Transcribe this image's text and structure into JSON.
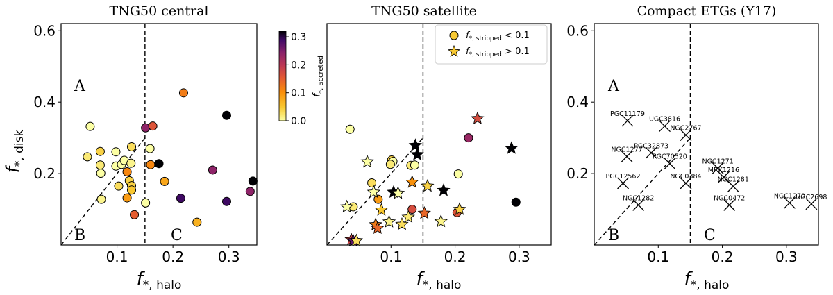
{
  "chart_data": [
    {
      "type": "scatter",
      "title": "TNG50 central",
      "xlabel": "f*, halo",
      "ylabel": "f*, disk",
      "xlim": [
        0,
        0.35
      ],
      "ylim": [
        0,
        0.62
      ],
      "xticks": [
        "0.1",
        "0.2",
        "0.3"
      ],
      "yticks": [
        "0.2",
        "0.4",
        "0.6"
      ],
      "halo_threshold": 0.15,
      "region_labels": [
        "A",
        "B",
        "C"
      ],
      "colorbar": {
        "label": "f*, accreted",
        "ticks": [
          "0.0",
          "0.1",
          "0.2",
          "0.3"
        ],
        "range": [
          0,
          0.32
        ]
      },
      "series": [
        {
          "marker": "circle",
          "points": [
            {
              "x": 0.047,
              "y": 0.247,
              "c": 0.02
            },
            {
              "x": 0.052,
              "y": 0.332,
              "c": 0.0
            },
            {
              "x": 0.07,
              "y": 0.262,
              "c": 0.04
            },
            {
              "x": 0.07,
              "y": 0.224,
              "c": 0.02
            },
            {
              "x": 0.071,
              "y": 0.201,
              "c": 0.0
            },
            {
              "x": 0.072,
              "y": 0.128,
              "c": 0.01
            },
            {
              "x": 0.098,
              "y": 0.261,
              "c": 0.0
            },
            {
              "x": 0.098,
              "y": 0.221,
              "c": 0.0
            },
            {
              "x": 0.103,
              "y": 0.165,
              "c": 0.03
            },
            {
              "x": 0.108,
              "y": 0.226,
              "c": 0.0
            },
            {
              "x": 0.113,
              "y": 0.237,
              "c": 0.0
            },
            {
              "x": 0.118,
              "y": 0.205,
              "c": 0.11
            },
            {
              "x": 0.118,
              "y": 0.132,
              "c": 0.09
            },
            {
              "x": 0.122,
              "y": 0.18,
              "c": 0.04
            },
            {
              "x": 0.126,
              "y": 0.166,
              "c": 0.04
            },
            {
              "x": 0.126,
              "y": 0.154,
              "c": 0.05
            },
            {
              "x": 0.126,
              "y": 0.275,
              "c": 0.03
            },
            {
              "x": 0.125,
              "y": 0.229,
              "c": 0.01
            },
            {
              "x": 0.131,
              "y": 0.085,
              "c": 0.15
            },
            {
              "x": 0.151,
              "y": 0.118,
              "c": 0.0
            },
            {
              "x": 0.151,
              "y": 0.328,
              "c": 0.24
            },
            {
              "x": 0.159,
              "y": 0.27,
              "c": 0.0
            },
            {
              "x": 0.16,
              "y": 0.225,
              "c": 0.11
            },
            {
              "x": 0.164,
              "y": 0.333,
              "c": 0.16
            },
            {
              "x": 0.175,
              "y": 0.228,
              "c": 0.35
            },
            {
              "x": 0.185,
              "y": 0.178,
              "c": 0.08
            },
            {
              "x": 0.214,
              "y": 0.131,
              "c": 0.29
            },
            {
              "x": 0.219,
              "y": 0.426,
              "c": 0.12
            },
            {
              "x": 0.243,
              "y": 0.064,
              "c": 0.07
            },
            {
              "x": 0.271,
              "y": 0.21,
              "c": 0.24
            },
            {
              "x": 0.296,
              "y": 0.122,
              "c": 0.29
            },
            {
              "x": 0.296,
              "y": 0.363,
              "c": 0.35
            },
            {
              "x": 0.338,
              "y": 0.15,
              "c": 0.24
            },
            {
              "x": 0.343,
              "y": 0.179,
              "c": 0.35
            }
          ]
        }
      ]
    },
    {
      "type": "scatter",
      "title": "TNG50 satellite",
      "xlabel": "f*, halo",
      "ylabel": "",
      "xlim": [
        0,
        0.35
      ],
      "ylim": [
        0,
        0.62
      ],
      "xticks": [
        "0.1",
        "0.2",
        "0.3"
      ],
      "yticks": [],
      "halo_threshold": 0.15,
      "legend": {
        "placement": "top-right",
        "entries": [
          "f*, stripped < 0.1",
          "f*, stripped > 0.1"
        ]
      },
      "series": [
        {
          "name": "f*, stripped < 0.1",
          "marker": "circle",
          "points": [
            {
              "x": 0.036,
              "y": 0.324,
              "c": 0.0
            },
            {
              "x": 0.041,
              "y": 0.107,
              "c": 0.02
            },
            {
              "x": 0.07,
              "y": 0.174,
              "c": 0.03
            },
            {
              "x": 0.08,
              "y": 0.128,
              "c": 0.09
            },
            {
              "x": 0.101,
              "y": 0.238,
              "c": 0.04
            },
            {
              "x": 0.103,
              "y": 0.234,
              "c": 0.0
            },
            {
              "x": 0.099,
              "y": 0.226,
              "c": 0.02
            },
            {
              "x": 0.131,
              "y": 0.223,
              "c": 0.02
            },
            {
              "x": 0.137,
              "y": 0.224,
              "c": 0.0
            },
            {
              "x": 0.133,
              "y": 0.1,
              "c": 0.17
            },
            {
              "x": 0.205,
              "y": 0.199,
              "c": 0.0
            },
            {
              "x": 0.203,
              "y": 0.091,
              "c": 0.16
            },
            {
              "x": 0.221,
              "y": 0.3,
              "c": 0.23
            },
            {
              "x": 0.295,
              "y": 0.12,
              "c": 0.35
            }
          ]
        },
        {
          "name": "f*, stripped > 0.1",
          "marker": "star",
          "points": [
            {
              "x": 0.031,
              "y": 0.107,
              "c": 0.0
            },
            {
              "x": 0.038,
              "y": 0.015,
              "c": 0.18
            },
            {
              "x": 0.041,
              "y": 0.012,
              "c": 0.27
            },
            {
              "x": 0.046,
              "y": 0.012,
              "c": 0.03
            },
            {
              "x": 0.063,
              "y": 0.233,
              "c": 0.0
            },
            {
              "x": 0.073,
              "y": 0.148,
              "c": 0.0
            },
            {
              "x": 0.076,
              "y": 0.057,
              "c": 0.12
            },
            {
              "x": 0.079,
              "y": 0.047,
              "c": 0.14
            },
            {
              "x": 0.085,
              "y": 0.098,
              "c": 0.05
            },
            {
              "x": 0.097,
              "y": 0.065,
              "c": 0.01
            },
            {
              "x": 0.104,
              "y": 0.148,
              "c": 0.35
            },
            {
              "x": 0.111,
              "y": 0.145,
              "c": 0.0
            },
            {
              "x": 0.117,
              "y": 0.058,
              "c": 0.03
            },
            {
              "x": 0.127,
              "y": 0.078,
              "c": 0.02
            },
            {
              "x": 0.138,
              "y": 0.279,
              "c": 0.32
            },
            {
              "x": 0.141,
              "y": 0.253,
              "c": 0.35
            },
            {
              "x": 0.133,
              "y": 0.176,
              "c": 0.1
            },
            {
              "x": 0.152,
              "y": 0.089,
              "c": 0.14
            },
            {
              "x": 0.157,
              "y": 0.165,
              "c": 0.04
            },
            {
              "x": 0.178,
              "y": 0.066,
              "c": 0.01
            },
            {
              "x": 0.182,
              "y": 0.153,
              "c": 0.35
            },
            {
              "x": 0.207,
              "y": 0.1,
              "c": 0.04
            },
            {
              "x": 0.235,
              "y": 0.354,
              "c": 0.17
            },
            {
              "x": 0.288,
              "y": 0.271,
              "c": 0.35
            }
          ]
        }
      ]
    },
    {
      "type": "scatter",
      "title": "Compact ETGs (Y17)",
      "xlabel": "f*, halo",
      "ylabel": "",
      "xlim": [
        0,
        0.35
      ],
      "ylim": [
        0,
        0.62
      ],
      "xticks": [
        "0.1",
        "0.2",
        "0.3"
      ],
      "yticks": [
        "0.2",
        "0.4",
        "0.6"
      ],
      "halo_threshold": 0.15,
      "region_labels": [
        "A",
        "B",
        "C"
      ],
      "series": [
        {
          "marker": "x",
          "points": [
            {
              "x": 0.052,
              "y": 0.348,
              "label": "PGC11179"
            },
            {
              "x": 0.11,
              "y": 0.333,
              "label": "UGC3816"
            },
            {
              "x": 0.143,
              "y": 0.308,
              "label": "NGC2767"
            },
            {
              "x": 0.089,
              "y": 0.258,
              "label": "PGC32873"
            },
            {
              "x": 0.051,
              "y": 0.248,
              "label": "NGC1277"
            },
            {
              "x": 0.118,
              "y": 0.228,
              "label": "PGC70520"
            },
            {
              "x": 0.193,
              "y": 0.215,
              "label": "NGC1271"
            },
            {
              "x": 0.202,
              "y": 0.19,
              "label": "MRK1216"
            },
            {
              "x": 0.143,
              "y": 0.173,
              "label": "NGC0384"
            },
            {
              "x": 0.045,
              "y": 0.173,
              "label": "PGC12562"
            },
            {
              "x": 0.217,
              "y": 0.164,
              "label": "NGC1281"
            },
            {
              "x": 0.069,
              "y": 0.112,
              "label": "NGC1282"
            },
            {
              "x": 0.211,
              "y": 0.112,
              "label": "NGC0472"
            },
            {
              "x": 0.305,
              "y": 0.118,
              "label": "NGC1270"
            },
            {
              "x": 0.339,
              "y": 0.115,
              "label": "UGC2698"
            }
          ]
        }
      ]
    }
  ]
}
